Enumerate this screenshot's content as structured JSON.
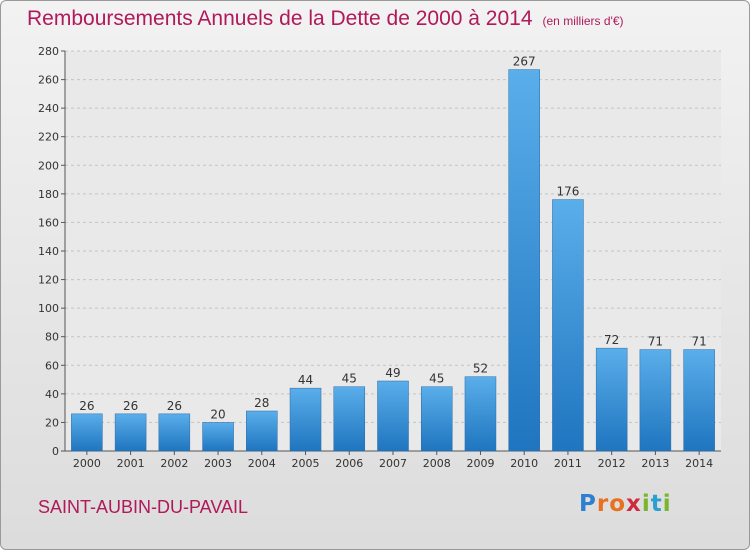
{
  "header": {
    "title": "Remboursements Annuels de la Dette de 2000 à 2014",
    "unit": "(en milliers d'€)"
  },
  "footer": {
    "commune": "SAINT-AUBIN-DU-PAVAIL",
    "logo": {
      "letters": [
        "P",
        "r",
        "o",
        "x",
        "i",
        "t",
        "i"
      ],
      "colors": [
        "#2e7fd0",
        "#e8701e",
        "#e8701e",
        "#d02a3e",
        "#7ab52e",
        "#2aa0d0",
        "#7ab52e"
      ]
    }
  },
  "colors": {
    "title": "#b0195a",
    "bar_light": "#5aaeea",
    "bar_dark": "#1f75bf"
  },
  "chart_data": {
    "type": "bar",
    "title": "Remboursements Annuels de la Dette de 2000 à 2014",
    "xlabel": "",
    "ylabel": "",
    "categories": [
      "2000",
      "2001",
      "2002",
      "2003",
      "2004",
      "2005",
      "2006",
      "2007",
      "2008",
      "2009",
      "2010",
      "2011",
      "2012",
      "2013",
      "2014"
    ],
    "values": [
      26,
      26,
      26,
      20,
      28,
      44,
      45,
      49,
      45,
      52,
      267,
      176,
      72,
      71,
      71
    ],
    "ylim": [
      0,
      280
    ],
    "yticks": [
      0,
      20,
      40,
      60,
      80,
      100,
      120,
      140,
      160,
      180,
      200,
      220,
      240,
      260,
      280
    ],
    "grid": true
  }
}
